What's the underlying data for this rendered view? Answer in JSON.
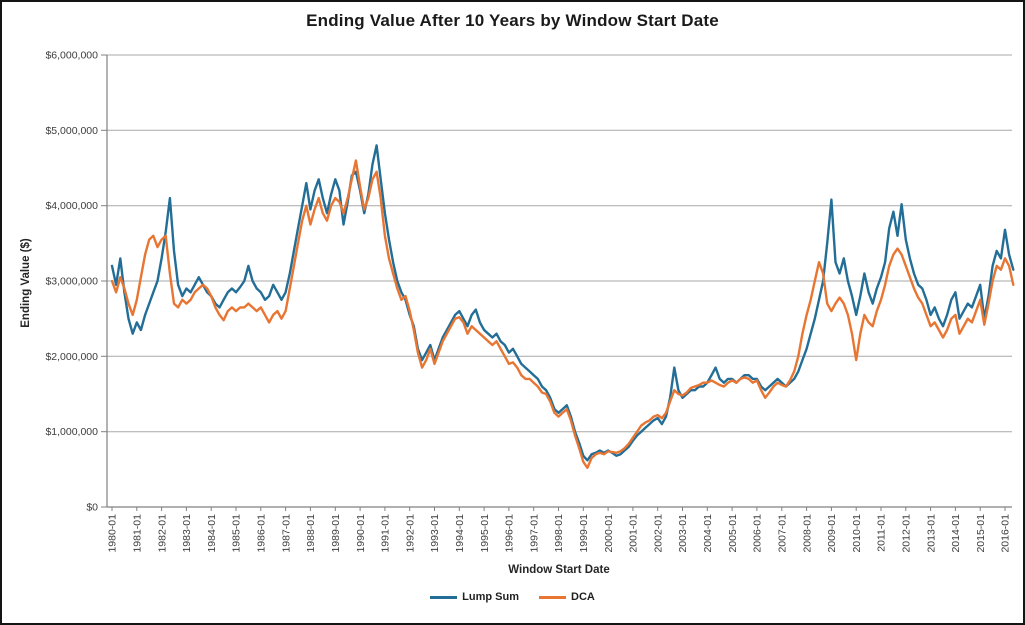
{
  "figure": {
    "title": "Ending Value After 10 Years by Window Start Date"
  },
  "chart_data": {
    "type": "line",
    "title": "Ending Value After 10 Years by Window Start Date",
    "xlabel": "Window Start Date",
    "ylabel": "Ending Value ($)",
    "grid": "horizontal",
    "legend_position": "bottom-center",
    "axis_color": "#808080",
    "grid_color": "#a8a8a8",
    "ylim_millions": [
      0,
      6
    ],
    "y_tick_labels": [
      "$0",
      "$1,000,000",
      "$2,000,000",
      "$3,000,000",
      "$4,000,000",
      "$5,000,000",
      "$6,000,000"
    ],
    "x_tick_labels": [
      "1980-01",
      "1981-01",
      "1982-01",
      "1983-01",
      "1984-01",
      "1985-01",
      "1986-01",
      "1987-01",
      "1988-01",
      "1989-01",
      "1990-01",
      "1991-01",
      "1992-01",
      "1993-01",
      "1994-01",
      "1995-01",
      "1996-01",
      "1997-01",
      "1998-01",
      "1999-01",
      "2000-01",
      "2001-01",
      "2002-01",
      "2003-01",
      "2004-01",
      "2005-01",
      "2006-01",
      "2007-01",
      "2008-01",
      "2009-01",
      "2010-01",
      "2011-01",
      "2012-01",
      "2013-01",
      "2014-01",
      "2015-01",
      "2016-01"
    ],
    "x_start": "1980-01",
    "x_end": "2016-05",
    "x_step_months": 2,
    "values_unit": "million USD",
    "series": [
      {
        "name": "Lump Sum",
        "color": "#236E96",
        "values_millions": [
          3.2,
          2.95,
          3.3,
          2.85,
          2.5,
          2.3,
          2.45,
          2.35,
          2.55,
          2.7,
          2.85,
          3.0,
          3.3,
          3.65,
          4.1,
          3.4,
          2.95,
          2.8,
          2.9,
          2.85,
          2.95,
          3.05,
          2.95,
          2.85,
          2.8,
          2.7,
          2.65,
          2.75,
          2.85,
          2.9,
          2.85,
          2.92,
          3.0,
          3.2,
          3.0,
          2.9,
          2.85,
          2.75,
          2.8,
          2.95,
          2.85,
          2.75,
          2.85,
          3.1,
          3.4,
          3.7,
          4.0,
          4.3,
          3.95,
          4.2,
          4.35,
          4.1,
          3.9,
          4.15,
          4.35,
          4.2,
          3.75,
          4.05,
          4.4,
          4.45,
          4.2,
          3.9,
          4.15,
          4.55,
          4.8,
          4.35,
          3.9,
          3.55,
          3.25,
          3.0,
          2.85,
          2.75,
          2.55,
          2.4,
          2.1,
          1.95,
          2.05,
          2.15,
          1.95,
          2.1,
          2.25,
          2.35,
          2.45,
          2.55,
          2.6,
          2.5,
          2.4,
          2.55,
          2.62,
          2.45,
          2.35,
          2.3,
          2.25,
          2.3,
          2.2,
          2.15,
          2.05,
          2.1,
          2.0,
          1.9,
          1.85,
          1.8,
          1.75,
          1.7,
          1.6,
          1.55,
          1.45,
          1.3,
          1.25,
          1.3,
          1.35,
          1.2,
          1.0,
          0.85,
          0.68,
          0.62,
          0.7,
          0.72,
          0.75,
          0.72,
          0.75,
          0.72,
          0.68,
          0.7,
          0.75,
          0.8,
          0.88,
          0.95,
          1.0,
          1.05,
          1.1,
          1.15,
          1.18,
          1.1,
          1.2,
          1.45,
          1.85,
          1.55,
          1.45,
          1.5,
          1.55,
          1.55,
          1.6,
          1.6,
          1.65,
          1.75,
          1.85,
          1.7,
          1.65,
          1.7,
          1.7,
          1.65,
          1.7,
          1.75,
          1.75,
          1.7,
          1.7,
          1.6,
          1.55,
          1.6,
          1.65,
          1.7,
          1.65,
          1.6,
          1.65,
          1.7,
          1.8,
          1.95,
          2.1,
          2.3,
          2.5,
          2.75,
          3.0,
          3.5,
          4.08,
          3.25,
          3.1,
          3.3,
          3.0,
          2.8,
          2.55,
          2.8,
          3.1,
          2.85,
          2.7,
          2.9,
          3.05,
          3.25,
          3.7,
          3.92,
          3.6,
          4.02,
          3.55,
          3.3,
          3.1,
          2.95,
          2.9,
          2.75,
          2.55,
          2.65,
          2.5,
          2.4,
          2.55,
          2.75,
          2.85,
          2.5,
          2.6,
          2.7,
          2.65,
          2.8,
          2.95,
          2.5,
          2.8,
          3.2,
          3.4,
          3.3,
          3.68,
          3.35,
          3.15
        ]
      },
      {
        "name": "DCA",
        "color": "#E87532",
        "values_millions": [
          3.0,
          2.85,
          3.05,
          2.9,
          2.7,
          2.55,
          2.75,
          3.05,
          3.35,
          3.55,
          3.6,
          3.45,
          3.55,
          3.6,
          3.1,
          2.7,
          2.65,
          2.75,
          2.7,
          2.75,
          2.85,
          2.9,
          2.95,
          2.9,
          2.8,
          2.65,
          2.55,
          2.48,
          2.6,
          2.65,
          2.6,
          2.65,
          2.65,
          2.7,
          2.65,
          2.6,
          2.65,
          2.55,
          2.45,
          2.55,
          2.6,
          2.5,
          2.6,
          2.9,
          3.2,
          3.5,
          3.8,
          4.0,
          3.75,
          3.95,
          4.1,
          3.9,
          3.8,
          4.0,
          4.1,
          4.05,
          3.9,
          4.1,
          4.35,
          4.6,
          4.25,
          3.95,
          4.1,
          4.35,
          4.45,
          4.1,
          3.6,
          3.3,
          3.1,
          2.9,
          2.75,
          2.8,
          2.6,
          2.35,
          2.05,
          1.85,
          1.95,
          2.1,
          1.9,
          2.05,
          2.2,
          2.3,
          2.4,
          2.5,
          2.52,
          2.45,
          2.3,
          2.4,
          2.35,
          2.3,
          2.25,
          2.2,
          2.15,
          2.2,
          2.1,
          2.0,
          1.9,
          1.92,
          1.85,
          1.75,
          1.7,
          1.7,
          1.65,
          1.6,
          1.52,
          1.5,
          1.4,
          1.25,
          1.2,
          1.25,
          1.3,
          1.15,
          0.95,
          0.78,
          0.6,
          0.52,
          0.65,
          0.7,
          0.72,
          0.7,
          0.74,
          0.73,
          0.72,
          0.74,
          0.78,
          0.84,
          0.92,
          1.0,
          1.08,
          1.12,
          1.15,
          1.2,
          1.22,
          1.18,
          1.25,
          1.4,
          1.55,
          1.5,
          1.48,
          1.52,
          1.58,
          1.6,
          1.62,
          1.65,
          1.65,
          1.68,
          1.65,
          1.62,
          1.6,
          1.65,
          1.68,
          1.65,
          1.7,
          1.72,
          1.7,
          1.65,
          1.68,
          1.55,
          1.45,
          1.52,
          1.6,
          1.65,
          1.62,
          1.6,
          1.68,
          1.8,
          2.0,
          2.3,
          2.55,
          2.75,
          3.0,
          3.25,
          3.1,
          2.7,
          2.6,
          2.7,
          2.78,
          2.7,
          2.55,
          2.3,
          1.95,
          2.3,
          2.55,
          2.45,
          2.4,
          2.6,
          2.75,
          2.95,
          3.2,
          3.35,
          3.43,
          3.35,
          3.2,
          3.05,
          2.9,
          2.78,
          2.7,
          2.55,
          2.4,
          2.45,
          2.35,
          2.25,
          2.35,
          2.5,
          2.55,
          2.3,
          2.4,
          2.5,
          2.45,
          2.6,
          2.75,
          2.42,
          2.7,
          3.0,
          3.2,
          3.15,
          3.3,
          3.2,
          2.95
        ]
      }
    ]
  }
}
